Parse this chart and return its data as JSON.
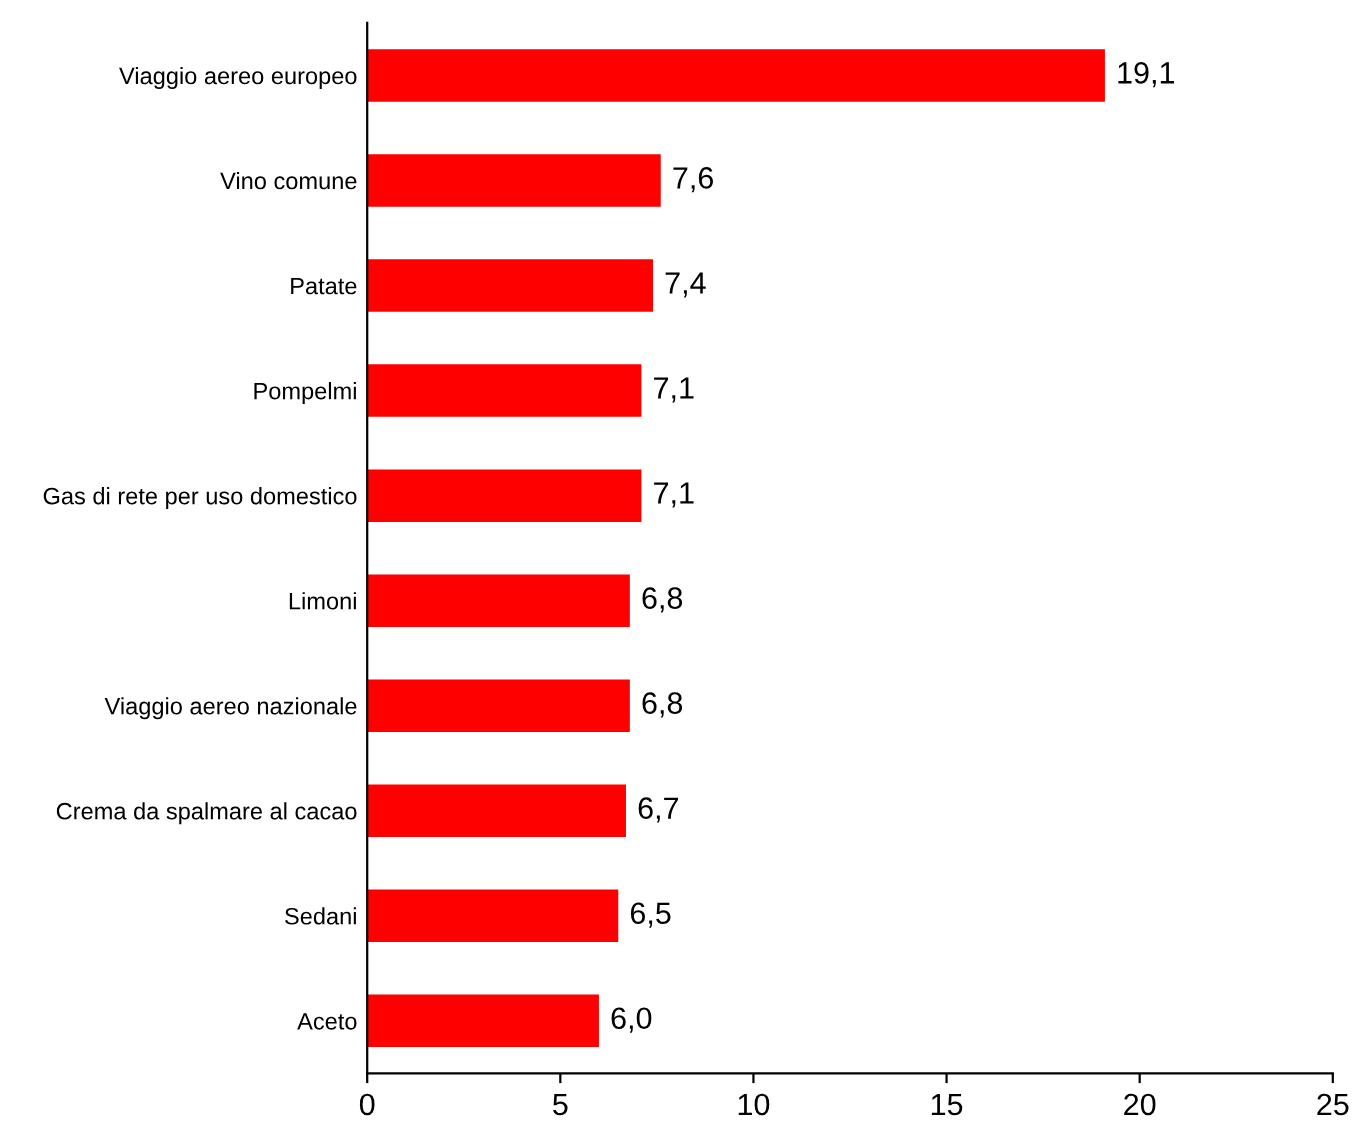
{
  "chart_data": {
    "type": "bar",
    "orientation": "horizontal",
    "categories": [
      "Viaggio aereo europeo",
      "Vino comune",
      "Patate",
      "Pompelmi",
      "Gas di rete per uso domestico",
      "Limoni",
      "Viaggio aereo nazionale",
      "Crema da spalmare al cacao",
      "Sedani",
      "Aceto"
    ],
    "values": [
      19.1,
      7.6,
      7.4,
      7.1,
      7.1,
      6.8,
      6.8,
      6.7,
      6.5,
      6.0
    ],
    "value_labels": [
      "19,1",
      "7,6",
      "7,4",
      "7,1",
      "7,1",
      "6,8",
      "6,8",
      "6,7",
      "6,5",
      "6,0"
    ],
    "color": "#ff0000",
    "xlim": [
      0,
      25
    ],
    "xticks": [
      0,
      5,
      10,
      15,
      20,
      25
    ],
    "grid": false
  }
}
